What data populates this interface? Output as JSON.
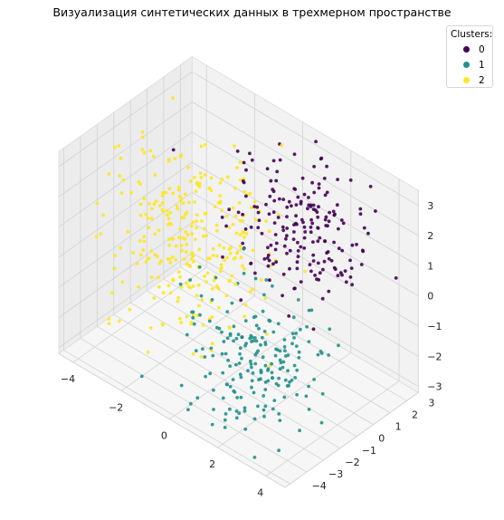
{
  "chart_data": {
    "type": "scatter",
    "projection": "3d",
    "title": "Визуализация синтетических данных в трехмерном пространстве",
    "xlabel": "",
    "ylabel": "",
    "zlabel": "",
    "xlim": [
      -4.6,
      4.8
    ],
    "ylim": [
      -4.3,
      3.7
    ],
    "zlim": [
      -3.2,
      3.5
    ],
    "x_ticks": [
      -4,
      -2,
      0,
      2,
      4
    ],
    "y_ticks": [
      -4,
      -3,
      -2,
      -1,
      0,
      1,
      2,
      3
    ],
    "z_ticks": [
      -3,
      -2,
      -1,
      0,
      1,
      2,
      3
    ],
    "grid": true,
    "legend": {
      "title": "Clusters:",
      "placement": "top-right"
    },
    "series": [
      {
        "name": "0",
        "color": "#440154",
        "approx_count": 200,
        "center": [
          1.5,
          1.5,
          1.5
        ],
        "spread": [
          1.2,
          1.2,
          1.0
        ]
      },
      {
        "name": "1",
        "color": "#21918c",
        "approx_count": 200,
        "center": [
          1.5,
          -1.5,
          -1.5
        ],
        "spread": [
          1.2,
          1.2,
          1.0
        ]
      },
      {
        "name": "2",
        "color": "#fde725",
        "approx_count": 300,
        "center": [
          -2.0,
          0.0,
          0.0
        ],
        "spread": [
          1.3,
          1.5,
          1.5
        ]
      }
    ]
  }
}
